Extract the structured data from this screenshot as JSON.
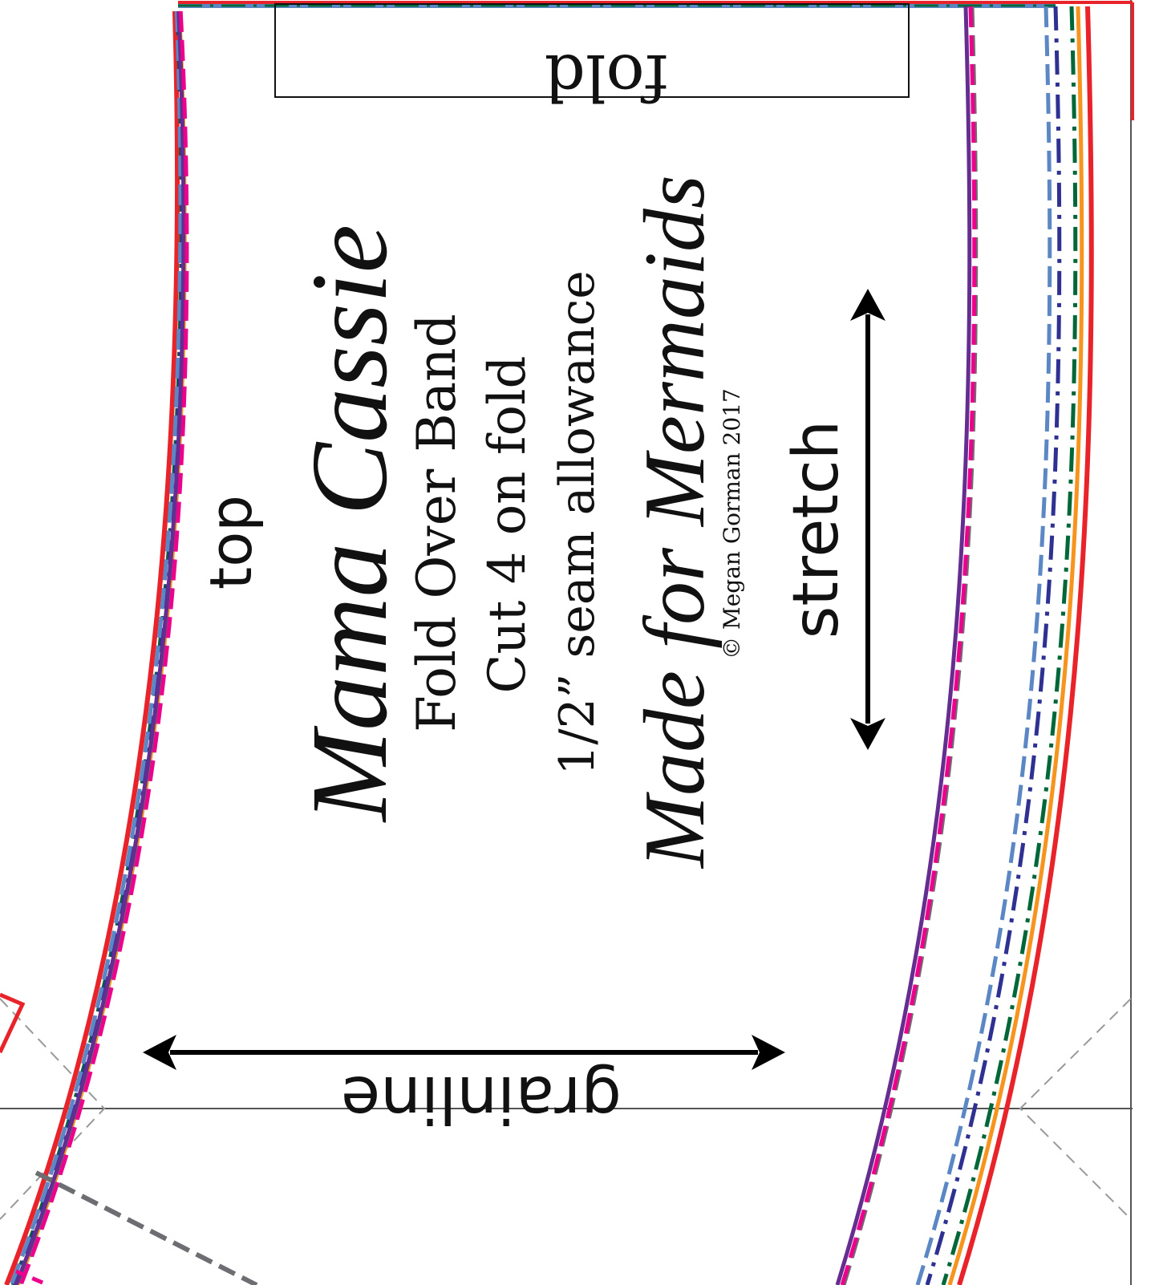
{
  "labels": {
    "fold": "fold",
    "top": "top",
    "title": "Mama Cassie",
    "piece": "Fold Over Band",
    "cut": "Cut 4 on fold",
    "seam": "1/2” seam allowance",
    "brand": "Made for Mermaids",
    "copyright": "© Megan Gorman 2017",
    "stretch": "stretch",
    "grainline": "grainline"
  },
  "size_lines": [
    {
      "color": "#e8232a",
      "style": "solid"
    },
    {
      "color": "#f7941d",
      "style": "solid"
    },
    {
      "color": "#006838",
      "style": "dash-dot"
    },
    {
      "color": "#2e3192",
      "style": "dash-dot"
    },
    {
      "color": "#5b87c5",
      "style": "dashed"
    },
    {
      "color": "#6d6e71",
      "style": "dashed"
    },
    {
      "color": "#662d91",
      "style": "solid"
    },
    {
      "color": "#ec008c",
      "style": "dashed"
    }
  ],
  "arrow_color": "#000000"
}
